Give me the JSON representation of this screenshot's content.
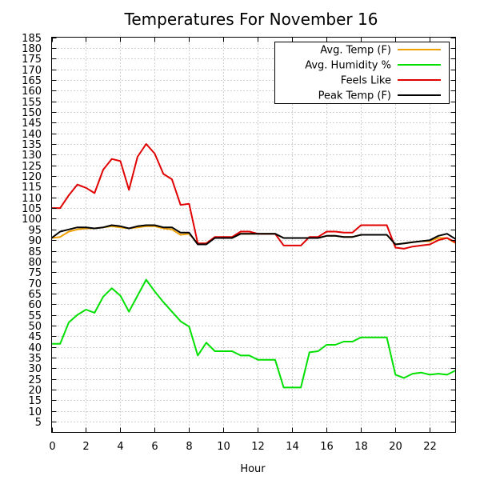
{
  "chart_data": {
    "type": "line",
    "title": "Temperatures For November 16",
    "xlabel": "Hour",
    "ylabel": "",
    "xlim": [
      0,
      23.5
    ],
    "ylim": [
      0,
      185
    ],
    "xticks": [
      0,
      2,
      4,
      6,
      8,
      10,
      12,
      14,
      16,
      18,
      20,
      22
    ],
    "yticks": [
      5,
      10,
      15,
      20,
      25,
      30,
      35,
      40,
      45,
      50,
      55,
      60,
      65,
      70,
      75,
      80,
      85,
      90,
      95,
      100,
      105,
      110,
      115,
      120,
      125,
      130,
      135,
      140,
      145,
      150,
      155,
      160,
      165,
      170,
      175,
      180,
      185
    ],
    "grid": true,
    "legend_position": "top-right",
    "x": [
      0,
      0.5,
      1,
      1.5,
      2,
      2.5,
      3,
      3.5,
      4,
      4.5,
      5,
      5.5,
      6,
      6.5,
      7,
      7.5,
      8,
      8.5,
      9,
      9.5,
      10,
      10.5,
      11,
      11.5,
      12,
      12.5,
      13,
      13.5,
      14,
      14.5,
      15,
      15.5,
      16,
      16.5,
      17,
      17.5,
      18,
      18.5,
      19,
      19.5,
      20,
      20.5,
      21,
      21.5,
      22,
      22.5,
      23,
      23.5
    ],
    "series": [
      {
        "name": "Avg. Temp (F)",
        "color": "#f0a000",
        "values": [
          91,
          91.5,
          94,
          95,
          95.5,
          95.5,
          96,
          96.5,
          96,
          95.5,
          96,
          96.5,
          96.5,
          95.5,
          95,
          92.5,
          93,
          88.5,
          88.5,
          91,
          91,
          91,
          93,
          93,
          93,
          93,
          93,
          91,
          91,
          91,
          91,
          91,
          92,
          92,
          91.5,
          91.5,
          92.5,
          92.5,
          92.5,
          92.5,
          88,
          88.5,
          89,
          89.5,
          89.5,
          91,
          91,
          88.5
        ]
      },
      {
        "name": "Avg. Humidity %",
        "color": "#00e000",
        "values": [
          41.5,
          41.5,
          51.5,
          55,
          57.5,
          56,
          63.5,
          67.5,
          64,
          56.5,
          64,
          71.5,
          66,
          61,
          56.5,
          52,
          49.5,
          36,
          42,
          38,
          38,
          38,
          36,
          36,
          34,
          34,
          34,
          21,
          21,
          21,
          37.5,
          38,
          41,
          41,
          42.5,
          42.5,
          44.5,
          44.5,
          44.5,
          44.5,
          27,
          25.5,
          27.5,
          28,
          27,
          27.5,
          27,
          29
        ]
      },
      {
        "name": "Feels Like",
        "color": "#e00000",
        "values": [
          105,
          105,
          111,
          116,
          114.5,
          112,
          123,
          128,
          127,
          113.5,
          129,
          135,
          130.5,
          121,
          118.5,
          106.5,
          107,
          88.5,
          88.5,
          91.5,
          91.5,
          91.5,
          94,
          94,
          93,
          93,
          93,
          87.5,
          87.5,
          87.5,
          91.5,
          91.5,
          94,
          94,
          93.5,
          93.5,
          97,
          97,
          97,
          97,
          86.5,
          86,
          87,
          87.5,
          88,
          90,
          91,
          89
        ]
      },
      {
        "name": "Peak Temp (F)",
        "color": "#000000",
        "values": [
          91,
          94,
          95,
          96,
          96,
          95.5,
          96,
          97,
          96.5,
          95.5,
          96.5,
          97,
          97,
          96,
          96,
          93.5,
          93.5,
          88,
          88,
          91,
          91,
          91,
          93,
          93,
          93,
          93,
          93,
          91,
          91,
          91,
          91,
          91,
          92,
          92,
          91.5,
          91.5,
          92.5,
          92.5,
          92.5,
          92.5,
          88,
          88.5,
          89,
          89.5,
          90,
          92,
          93,
          90.5
        ]
      }
    ]
  }
}
